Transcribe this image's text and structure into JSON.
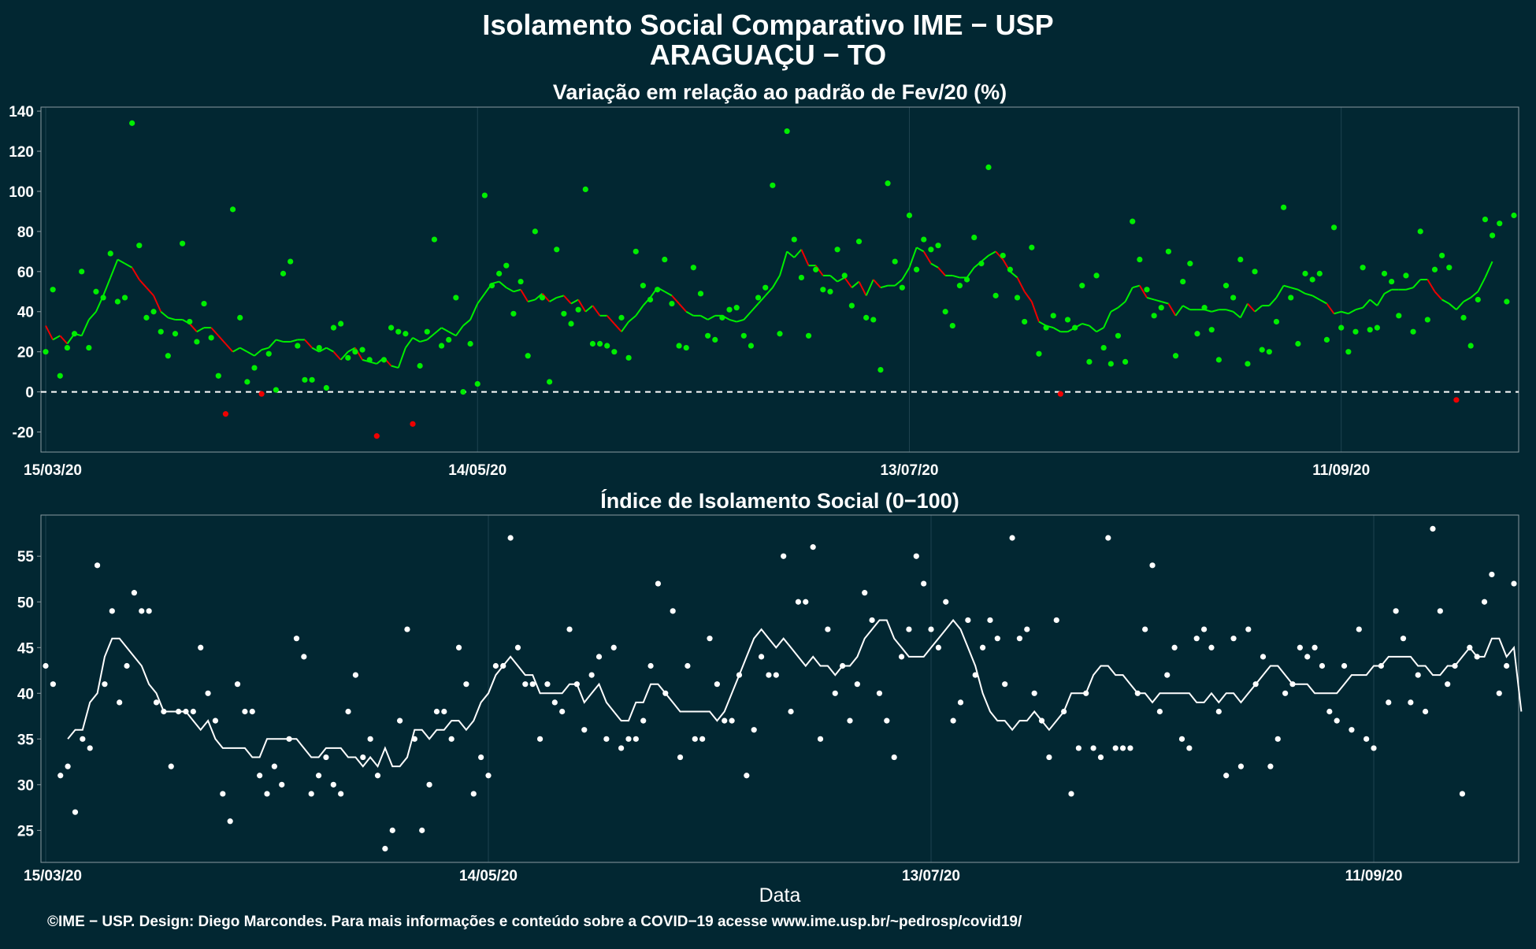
{
  "header": {
    "title": "Isolamento Social Comparativo IME − USP",
    "subtitle": "ARAGUAÇU − TO"
  },
  "footer": {
    "caption": "©IME − USP. Design: Diego Marcondes. Para mais informações e conteúdo sobre a COVID−19 acesse www.ime.usp.br/~pedrosp/covid19/"
  },
  "colors": {
    "background": "#022732",
    "positive": "#00ee00",
    "negative": "#ee0000",
    "index": "#ffffff",
    "frame": "#8a9aa0",
    "grid": "#1f4350"
  },
  "chart_data": [
    {
      "id": "variacao",
      "type": "scatter",
      "title": "Variação em relação ao padrão de Fev/20 (%)",
      "xlabel": "",
      "ylabel": "",
      "x_start": "15/03/20",
      "x_end": "01/10/20",
      "x_ticks": [
        "15/03/20",
        "14/05/20",
        "13/07/20",
        "11/09/20"
      ],
      "x_tick_offsets": [
        0,
        60,
        120,
        180
      ],
      "ylim": [
        -30,
        142
      ],
      "y_ticks": [
        -20,
        0,
        20,
        40,
        60,
        80,
        100,
        120,
        140
      ],
      "reference_line": 0,
      "grid": true,
      "series": [
        {
          "role": "daily",
          "values": [
            20,
            51,
            8,
            22,
            29,
            60,
            22,
            50,
            47,
            69,
            45,
            47,
            134,
            73,
            37,
            40,
            30,
            18,
            29,
            74,
            35,
            25,
            44,
            27,
            8,
            -11,
            91,
            37,
            5,
            12,
            -1,
            19,
            1,
            59,
            65,
            23,
            6,
            6,
            22,
            2,
            32,
            34,
            17,
            20,
            21,
            16,
            -22,
            16,
            32,
            30,
            29,
            -16,
            13,
            30,
            76,
            23,
            26,
            47,
            0,
            24,
            4,
            98,
            53,
            59,
            63,
            39,
            55,
            18,
            80,
            47,
            5,
            71,
            39,
            34,
            41,
            101,
            24,
            24,
            23,
            20,
            37,
            17,
            70,
            53,
            46,
            51,
            66,
            44,
            23,
            22,
            62,
            49,
            28,
            26,
            37,
            41,
            42,
            28,
            23,
            47,
            52,
            103,
            29,
            130,
            76,
            57,
            28,
            61,
            51,
            50,
            71,
            58,
            43,
            75,
            37,
            36,
            11,
            104,
            65,
            52,
            88,
            61,
            76,
            71,
            73,
            40,
            33,
            53,
            56,
            77,
            64,
            112,
            48,
            68,
            61,
            47,
            35,
            72,
            19,
            32,
            38,
            -1,
            36,
            32,
            53,
            15,
            58,
            22,
            14,
            28,
            15,
            85,
            66,
            51,
            38,
            42,
            70,
            18,
            55,
            64,
            29,
            42,
            31,
            16,
            53,
            47,
            66,
            14,
            60,
            21,
            20,
            35,
            92,
            47,
            24,
            59,
            56,
            59,
            26,
            82,
            32,
            20,
            30,
            62,
            31,
            32,
            59,
            55,
            38,
            58,
            30,
            80,
            36,
            61,
            68,
            62,
            -4,
            37,
            23,
            46,
            86,
            78,
            84,
            45,
            88
          ]
        },
        {
          "role": "moving-average",
          "values": [
            33,
            26,
            28,
            24,
            29,
            28,
            36,
            40,
            48,
            57,
            66,
            64,
            62,
            56,
            52,
            48,
            40,
            37,
            36,
            36,
            34,
            30,
            32,
            32,
            28,
            24,
            20,
            22,
            20,
            18,
            21,
            22,
            26,
            25,
            25,
            26,
            26,
            22,
            20,
            22,
            20,
            16,
            20,
            22,
            16,
            15,
            14,
            17,
            13,
            12,
            22,
            27,
            25,
            26,
            29,
            32,
            30,
            28,
            33,
            36,
            44,
            49,
            54,
            55,
            52,
            50,
            51,
            45,
            46,
            49,
            45,
            47,
            48,
            44,
            46,
            40,
            43,
            38,
            38,
            34,
            30,
            35,
            38,
            43,
            47,
            52,
            50,
            48,
            44,
            40,
            38,
            38,
            36,
            38,
            38,
            36,
            35,
            36,
            40,
            44,
            48,
            52,
            58,
            70,
            67,
            71,
            63,
            63,
            58,
            58,
            55,
            57,
            52,
            55,
            48,
            56,
            52,
            53,
            53,
            56,
            62,
            72,
            70,
            64,
            62,
            58,
            58,
            57,
            57,
            62,
            65,
            68,
            70,
            66,
            60,
            57,
            50,
            45,
            35,
            33,
            32,
            30,
            30,
            32,
            34,
            33,
            30,
            32,
            40,
            42,
            45,
            52,
            53,
            47,
            46,
            45,
            44,
            38,
            43,
            41,
            41,
            41,
            40,
            41,
            41,
            40,
            37,
            44,
            40,
            43,
            43,
            47,
            53,
            52,
            51,
            49,
            48,
            46,
            44,
            39,
            40,
            39,
            41,
            42,
            46,
            43,
            49,
            51,
            51,
            51,
            52,
            56,
            56,
            50,
            46,
            44,
            41,
            45,
            47,
            50,
            57,
            65
          ]
        }
      ]
    },
    {
      "id": "indice",
      "type": "scatter",
      "title": "Índice de Isolamento Social (0−100)",
      "xlabel": "Data",
      "ylabel": "",
      "x_start": "15/03/20",
      "x_end": "01/10/20",
      "x_ticks": [
        "15/03/20",
        "14/05/20",
        "13/07/20",
        "11/09/20"
      ],
      "x_tick_offsets": [
        0,
        60,
        120,
        180
      ],
      "ylim": [
        21.5,
        59.5
      ],
      "y_ticks": [
        25,
        30,
        35,
        40,
        45,
        50,
        55
      ],
      "grid": true,
      "series": [
        {
          "role": "daily",
          "values": [
            43,
            41,
            31,
            32,
            27,
            35,
            34,
            54,
            41,
            49,
            39,
            43,
            51,
            49,
            49,
            39,
            38,
            32,
            38,
            38,
            38,
            45,
            40,
            37,
            29,
            26,
            41,
            38,
            38,
            31,
            29,
            32,
            30,
            35,
            46,
            44,
            29,
            31,
            33,
            30,
            29,
            38,
            42,
            33,
            35,
            31,
            23,
            25,
            37,
            47,
            35,
            25,
            30,
            38,
            38,
            35,
            45,
            41,
            29,
            33,
            31,
            43,
            43,
            57,
            45,
            41,
            41,
            35,
            41,
            39,
            38,
            47,
            41,
            36,
            42,
            44,
            35,
            45,
            34,
            35,
            35,
            37,
            43,
            52,
            40,
            49,
            33,
            43,
            35,
            35,
            46,
            41,
            37,
            37,
            42,
            31,
            36,
            44,
            42,
            42,
            55,
            38,
            50,
            50,
            56,
            35,
            47,
            40,
            43,
            37,
            41,
            51,
            48,
            40,
            37,
            33,
            44,
            47,
            55,
            52,
            47,
            45,
            50,
            37,
            39,
            48,
            42,
            45,
            48,
            46,
            41,
            57,
            46,
            47,
            40,
            37,
            33,
            48,
            38,
            29,
            34,
            40,
            34,
            33,
            57,
            34,
            34,
            34,
            40,
            47,
            54,
            38,
            42,
            45,
            35,
            34,
            46,
            47,
            45,
            38,
            31,
            46,
            32,
            47,
            41,
            44,
            32,
            35,
            40,
            41,
            45,
            44,
            45,
            43,
            38,
            37,
            43,
            36,
            47,
            35,
            34,
            43,
            39,
            49,
            46,
            39,
            42,
            38,
            58,
            49,
            41,
            43,
            29,
            45,
            44,
            50,
            53,
            40,
            43,
            52
          ]
        },
        {
          "role": "moving-average",
          "values": [
            null,
            null,
            null,
            35,
            36,
            36,
            39,
            40,
            44,
            46,
            46,
            45,
            44,
            43,
            41,
            40,
            38,
            38,
            38,
            38,
            37,
            36,
            37,
            35,
            34,
            34,
            34,
            34,
            33,
            33,
            35,
            35,
            35,
            35,
            35,
            34,
            33,
            33,
            34,
            34,
            34,
            33,
            33,
            32,
            33,
            32,
            34,
            32,
            32,
            33,
            36,
            36,
            35,
            36,
            36,
            37,
            37,
            36,
            37,
            39,
            40,
            42,
            43,
            44,
            43,
            42,
            42,
            40,
            40,
            40,
            40,
            41,
            41,
            39,
            40,
            41,
            39,
            38,
            37,
            37,
            39,
            39,
            41,
            41,
            40,
            39,
            38,
            38,
            38,
            38,
            38,
            37,
            38,
            40,
            42,
            44,
            46,
            47,
            46,
            45,
            46,
            45,
            44,
            43,
            44,
            43,
            43,
            42,
            43,
            43,
            44,
            46,
            47,
            48,
            48,
            46,
            45,
            44,
            44,
            44,
            45,
            46,
            47,
            48,
            47,
            45,
            43,
            40,
            38,
            37,
            37,
            36,
            37,
            37,
            38,
            37,
            36,
            37,
            38,
            40,
            40,
            40,
            42,
            43,
            43,
            42,
            42,
            41,
            40,
            40,
            39,
            40,
            40,
            40,
            40,
            40,
            39,
            39,
            40,
            39,
            40,
            40,
            39,
            40,
            41,
            42,
            43,
            43,
            42,
            41,
            41,
            41,
            40,
            40,
            40,
            40,
            41,
            42,
            42,
            42,
            43,
            43,
            44,
            44,
            44,
            44,
            43,
            43,
            42,
            42,
            43,
            43,
            44,
            45,
            44,
            44,
            46,
            46,
            44,
            45,
            38
          ]
        }
      ]
    }
  ]
}
